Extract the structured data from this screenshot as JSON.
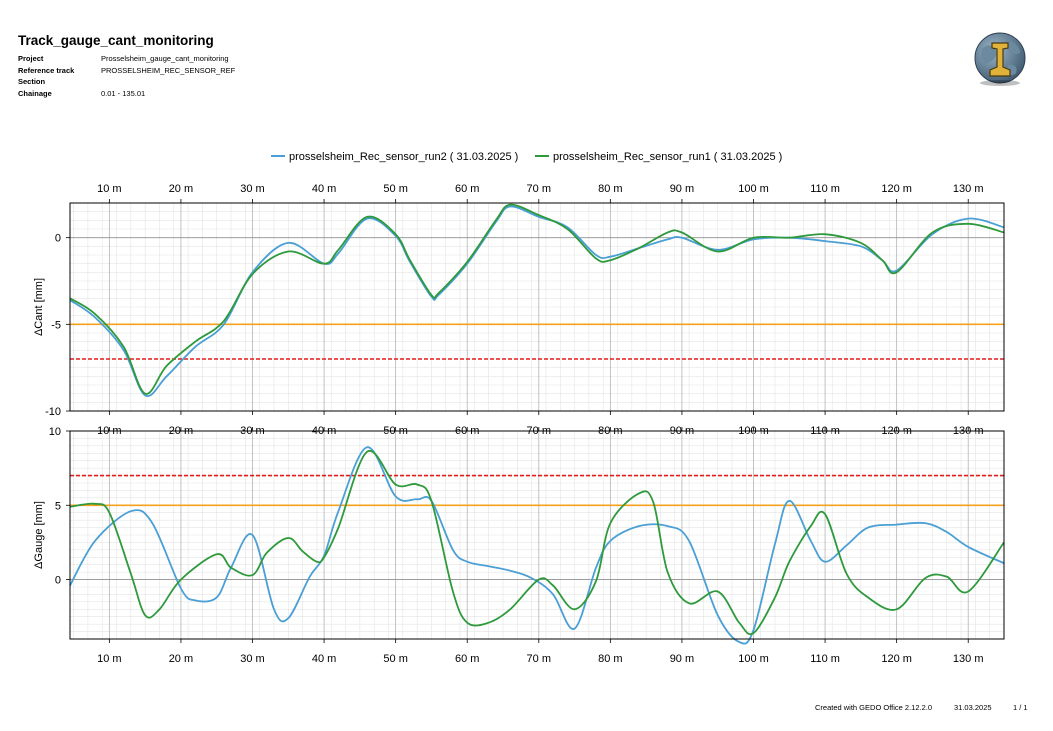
{
  "report": {
    "title": "Track_gauge_cant_monitoring",
    "meta": [
      {
        "label": "Project",
        "value": "Prosselsheim_gauge_cant_monitoring"
      },
      {
        "label": "Reference track",
        "value": "PROSSELSHEIM_REC_SENSOR_REF"
      },
      {
        "label": "Section",
        "value": ""
      },
      {
        "label": "Chainage",
        "value": "0.01 - 135.01"
      }
    ],
    "footer": {
      "created": "Created with GEDO Office 2.12.2.0",
      "date": "31.03.2025",
      "page": "1 / 1"
    }
  },
  "chart_data": [
    {
      "type": "line",
      "panel": "cant",
      "ylabel": "ΔCant [mm]",
      "xlim": [
        4.5,
        135
      ],
      "ylim": [
        -10,
        2
      ],
      "x_ticks": [
        10,
        20,
        30,
        40,
        50,
        60,
        70,
        80,
        90,
        100,
        110,
        120,
        130
      ],
      "x_tick_labels": [
        "10 m",
        "20 m",
        "30 m",
        "40 m",
        "50 m",
        "60 m",
        "70 m",
        "80 m",
        "90 m",
        "100 m",
        "110 m",
        "120 m",
        "130 m"
      ],
      "y_ticks": [
        -10,
        -5,
        0
      ],
      "grid": true,
      "thresholds": [
        {
          "value": -5,
          "color": "#f5a11c",
          "style": "solid"
        },
        {
          "value": -7,
          "color": "#e01d1d",
          "style": "dashed"
        }
      ],
      "series": [
        {
          "name": "prosselsheim_Rec_sensor_run2 ( 31.03.2025 )",
          "color": "#4a9fd5",
          "x": [
            4.5,
            8,
            12,
            15,
            18,
            22,
            26,
            30,
            35,
            40,
            42,
            46,
            50,
            52,
            55,
            56,
            60,
            64,
            66,
            70,
            74,
            78,
            80,
            84,
            88,
            90,
            95,
            100,
            105,
            110,
            115,
            118,
            120,
            125,
            130,
            135
          ],
          "y": [
            -3.6,
            -4.6,
            -6.5,
            -9.1,
            -8.0,
            -6.3,
            -5.0,
            -2.0,
            -0.3,
            -1.5,
            -0.9,
            1.1,
            0.1,
            -1.4,
            -3.4,
            -3.3,
            -1.5,
            0.9,
            1.8,
            1.2,
            0.6,
            -1.0,
            -1.1,
            -0.6,
            -0.1,
            0.0,
            -0.7,
            -0.1,
            0.0,
            -0.2,
            -0.5,
            -1.3,
            -1.9,
            0.2,
            1.1,
            0.6
          ]
        },
        {
          "name": "prosselsheim_Rec_sensor_run1 ( 31.03.2025 )",
          "color": "#2e9a3c",
          "x": [
            4.5,
            8,
            12,
            15,
            18,
            22,
            26,
            30,
            35,
            40,
            42,
            46,
            50,
            52,
            55,
            56,
            60,
            64,
            66,
            70,
            74,
            78,
            80,
            84,
            88,
            90,
            95,
            100,
            105,
            110,
            115,
            118,
            120,
            125,
            130,
            135
          ],
          "y": [
            -3.5,
            -4.4,
            -6.3,
            -9.0,
            -7.4,
            -6.0,
            -4.8,
            -2.1,
            -0.8,
            -1.5,
            -0.7,
            1.2,
            0.2,
            -1.3,
            -3.3,
            -3.2,
            -1.4,
            1.0,
            1.9,
            1.3,
            0.5,
            -1.2,
            -1.3,
            -0.6,
            0.3,
            0.3,
            -0.8,
            0.0,
            0.0,
            0.2,
            -0.3,
            -1.3,
            -2.0,
            0.3,
            0.8,
            0.3
          ]
        }
      ]
    },
    {
      "type": "line",
      "panel": "gauge",
      "ylabel": "ΔGauge [mm]",
      "xlim": [
        4.5,
        135
      ],
      "ylim": [
        -4,
        10
      ],
      "x_ticks": [
        10,
        20,
        30,
        40,
        50,
        60,
        70,
        80,
        90,
        100,
        110,
        120,
        130
      ],
      "x_tick_labels": [
        "10 m",
        "20 m",
        "30 m",
        "40 m",
        "50 m",
        "60 m",
        "70 m",
        "80 m",
        "90 m",
        "100 m",
        "110 m",
        "120 m",
        "130 m"
      ],
      "y_ticks": [
        0,
        5,
        10
      ],
      "grid": true,
      "thresholds": [
        {
          "value": 5,
          "color": "#f5a11c",
          "style": "solid"
        },
        {
          "value": 7,
          "color": "#e01d1d",
          "style": "dashed"
        }
      ],
      "series": [
        {
          "name": "prosselsheim_Rec_sensor_run2 ( 31.03.2025 )",
          "color": "#4a9fd5",
          "x": [
            4.5,
            8,
            13,
            16,
            20,
            22,
            25,
            27,
            30,
            33,
            35,
            38,
            40,
            42,
            46,
            50,
            53,
            55,
            58,
            60,
            63,
            66,
            69,
            72,
            75,
            78,
            80,
            84,
            88,
            91,
            95,
            98,
            100,
            103,
            105,
            108,
            110,
            113,
            116,
            120,
            124,
            127,
            130,
            135
          ],
          "y": [
            -0.4,
            2.6,
            4.6,
            3.8,
            -0.6,
            -1.4,
            -1.2,
            0.8,
            3.0,
            -2.0,
            -2.6,
            0.2,
            1.6,
            4.6,
            8.9,
            5.6,
            5.4,
            5.3,
            2.0,
            1.2,
            0.9,
            0.6,
            0.1,
            -1.0,
            -3.3,
            0.8,
            2.6,
            3.6,
            3.6,
            2.6,
            -2.4,
            -4.2,
            -3.4,
            2.4,
            5.3,
            2.6,
            1.2,
            2.3,
            3.5,
            3.7,
            3.8,
            3.2,
            2.2,
            1.1
          ]
        },
        {
          "name": "prosselsheim_Rec_sensor_run1 ( 31.03.2025 )",
          "color": "#2e9a3c",
          "x": [
            4.5,
            8,
            10,
            13,
            15,
            17,
            20,
            25,
            27,
            30,
            32,
            35,
            37,
            39,
            40,
            42,
            46,
            50,
            53,
            55,
            58,
            60,
            63,
            66,
            70,
            72,
            75,
            78,
            80,
            84,
            86,
            88,
            91,
            95,
            98,
            100,
            103,
            105,
            108,
            110,
            113,
            116,
            120,
            124,
            127,
            130,
            135
          ],
          "y": [
            4.9,
            5.1,
            4.5,
            0.4,
            -2.4,
            -2.0,
            0.0,
            1.7,
            0.8,
            0.3,
            1.8,
            2.8,
            1.9,
            1.2,
            1.5,
            3.5,
            8.6,
            6.4,
            6.4,
            5.3,
            -0.8,
            -2.9,
            -2.9,
            -2.0,
            0.0,
            -0.4,
            -2.0,
            -0.1,
            3.8,
            5.8,
            5.2,
            0.5,
            -1.6,
            -0.8,
            -2.9,
            -3.6,
            -1.2,
            1.2,
            3.6,
            4.4,
            0.4,
            -1.2,
            -2.0,
            0.1,
            0.2,
            -0.8,
            2.5
          ]
        }
      ]
    }
  ]
}
